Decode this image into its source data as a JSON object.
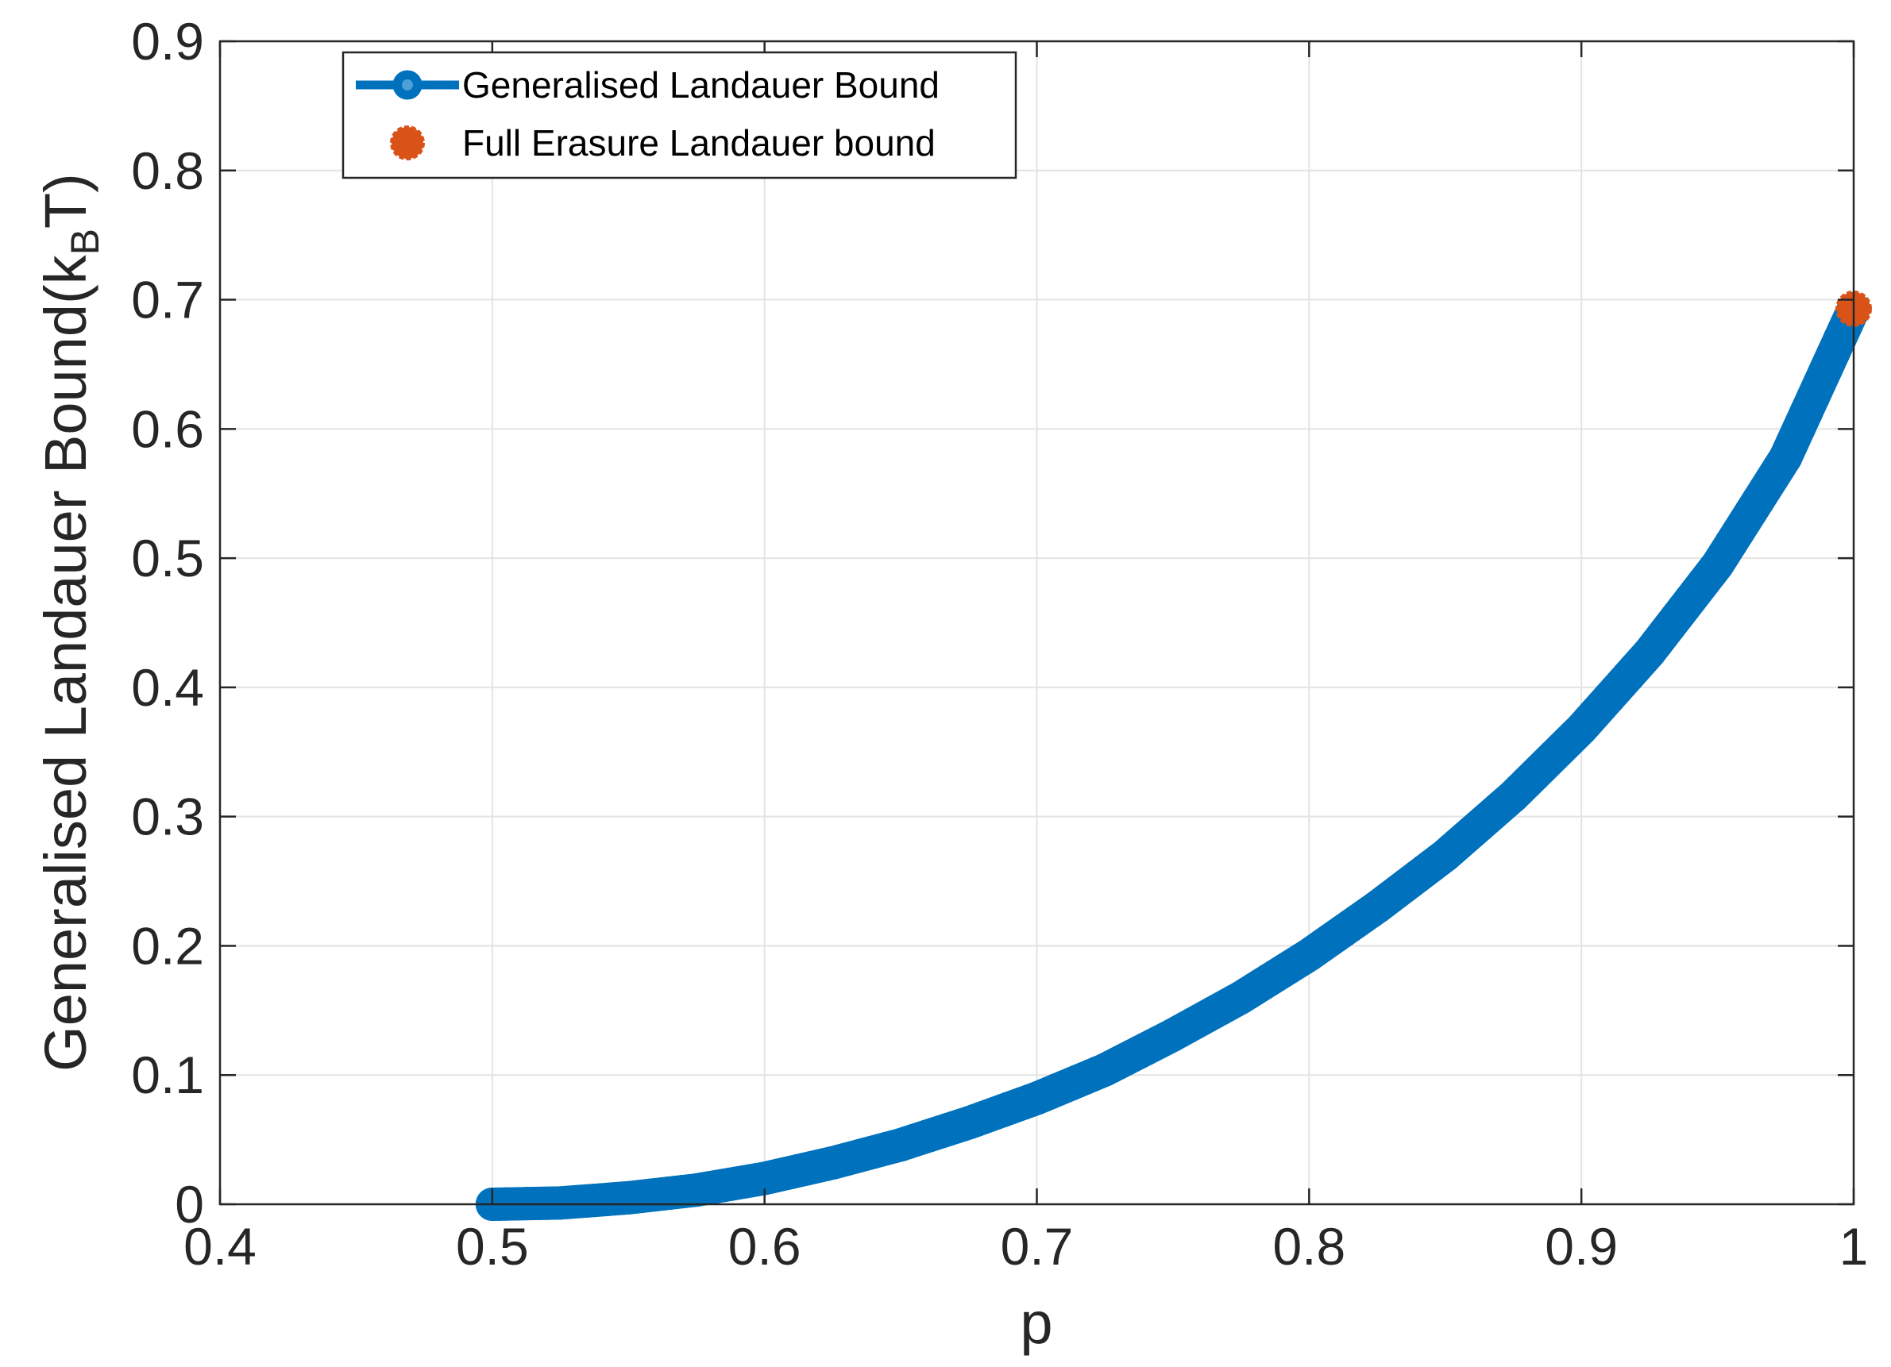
{
  "chart_data": {
    "type": "scatter",
    "xlabel": "p",
    "ylabel": "Generalised Landauer Bound(k",
    "ylabel_sub": "B",
    "ylabel_tail": "T)",
    "xlim": [
      0.4,
      1.0
    ],
    "ylim": [
      0,
      0.9
    ],
    "xticks": [
      "0.4",
      "0.5",
      "0.6",
      "0.7",
      "0.8",
      "0.9",
      "1"
    ],
    "yticks": [
      "0",
      "0.1",
      "0.2",
      "0.3",
      "0.4",
      "0.5",
      "0.6",
      "0.7",
      "0.8",
      "0.9"
    ],
    "grid": true,
    "legend_position": "top-left",
    "series": [
      {
        "name": "Generalised Landauer Bound",
        "color": "#0072BD",
        "style": "line-with-markers",
        "x": [
          0.5,
          0.525,
          0.55,
          0.575,
          0.6,
          0.625,
          0.65,
          0.675,
          0.7,
          0.725,
          0.75,
          0.775,
          0.8,
          0.825,
          0.85,
          0.875,
          0.9,
          0.925,
          0.95,
          0.975,
          1.0
        ],
        "y": [
          0.0,
          0.001,
          0.005,
          0.011,
          0.02,
          0.032,
          0.046,
          0.063,
          0.082,
          0.104,
          0.131,
          0.16,
          0.193,
          0.23,
          0.27,
          0.316,
          0.368,
          0.427,
          0.495,
          0.578,
          0.693
        ]
      },
      {
        "name": "Full Erasure Landauer bound",
        "color": "#D95319",
        "style": "marker",
        "x": [
          1.0
        ],
        "y": [
          0.693
        ]
      }
    ]
  }
}
